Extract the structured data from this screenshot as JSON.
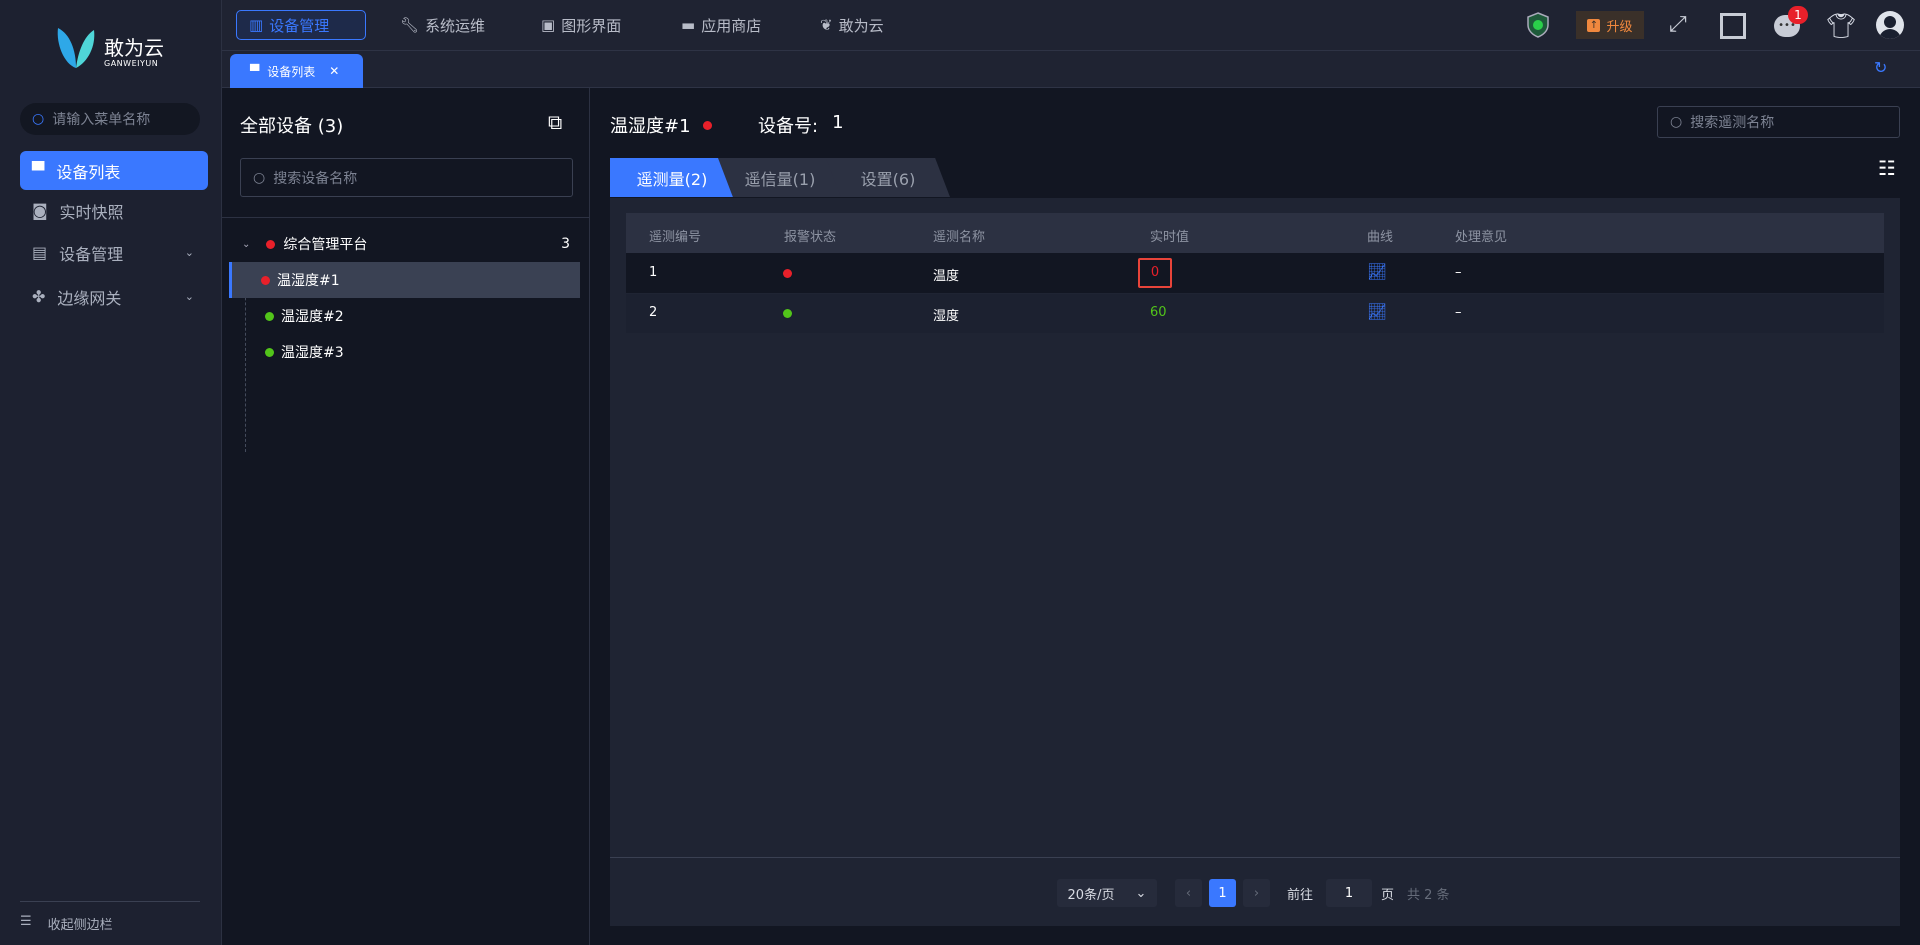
{
  "brand": {
    "name": "敢为云",
    "sub": "GANWEIYUN"
  },
  "sidebar": {
    "search_placeholder": "请输入菜单名称",
    "items": [
      {
        "label": "设备列表",
        "icon": "monitor-icon",
        "active": true
      },
      {
        "label": "实时快照",
        "icon": "camera-icon"
      },
      {
        "label": "设备管理",
        "icon": "server-icon",
        "expandable": true
      },
      {
        "label": "边缘网关",
        "icon": "gateway-icon",
        "expandable": true
      }
    ],
    "collapse_label": "收起侧边栏"
  },
  "topnav": {
    "items": [
      {
        "label": "设备管理",
        "active": true
      },
      {
        "label": "系统运维"
      },
      {
        "label": "图形界面"
      },
      {
        "label": "应用商店"
      },
      {
        "label": "敢为云"
      }
    ],
    "upgrade_label": "升级",
    "message_badge": "1"
  },
  "tabs": {
    "items": [
      {
        "label": "设备列表"
      }
    ]
  },
  "tree": {
    "title": "全部设备 (3)",
    "search_placeholder": "搜索设备名称",
    "root": {
      "label": "综合管理平台",
      "count": "3",
      "status": "alarm"
    },
    "children": [
      {
        "label": "温湿度#1",
        "status": "alarm",
        "selected": true
      },
      {
        "label": "温湿度#2",
        "status": "ok"
      },
      {
        "label": "温湿度#3",
        "status": "ok"
      }
    ]
  },
  "detail": {
    "device_name": "温湿度#1",
    "device_no_label": "设备号:",
    "device_no": "1",
    "search_placeholder": "搜索遥测名称",
    "tabs": [
      {
        "label": "遥测量(2)",
        "active": true
      },
      {
        "label": "遥信量(1)"
      },
      {
        "label": "设置(6)"
      }
    ],
    "table": {
      "columns": [
        "遥测编号",
        "报警状态",
        "遥测名称",
        "实时值",
        "曲线",
        "处理意见"
      ],
      "rows": [
        {
          "id": "1",
          "alarm": "alarm",
          "name": "温度",
          "value": "0",
          "opinion": "–"
        },
        {
          "id": "2",
          "alarm": "ok",
          "name": "湿度",
          "value": "60",
          "opinion": "–"
        }
      ]
    },
    "pagination": {
      "page_size": "20条/页",
      "current": "1",
      "goto_label": "前往",
      "goto_value": "1",
      "page_unit": "页",
      "total": "共 2 条"
    }
  },
  "colors": {
    "accent": "#3a78ff",
    "alarm": "#e8202a",
    "ok": "#52c41a",
    "upgrade": "#f0883e"
  }
}
